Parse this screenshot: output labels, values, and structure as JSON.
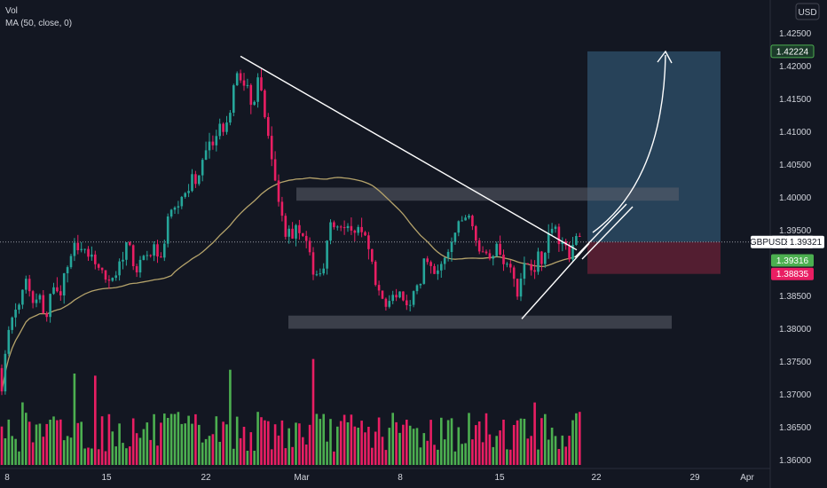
{
  "legend": {
    "vol_label": "Vol",
    "ma_label": "MA (50, close, 0)"
  },
  "currency": "USD",
  "chart_data": {
    "type": "candlestick",
    "symbol": "GBPUSD",
    "y_ticks": [
      "1.42500",
      "1.42000",
      "1.41500",
      "1.41000",
      "1.40500",
      "1.40000",
      "1.39500",
      "1.39000",
      "1.38500",
      "1.38000",
      "1.37500",
      "1.37000",
      "1.36500",
      "1.36000"
    ],
    "y_values": [
      1.425,
      1.42,
      1.415,
      1.41,
      1.405,
      1.4,
      1.395,
      1.39,
      1.385,
      1.38,
      1.375,
      1.37,
      1.365,
      1.36
    ],
    "ylim": [
      1.359,
      1.4285
    ],
    "x_ticks": [
      "8",
      "15",
      "22",
      "Mar",
      "8",
      "15",
      "22",
      "29",
      "Apr"
    ],
    "price_tags": {
      "target": "1.42224",
      "symbol_price": "1.39321",
      "ma_value": "1.39316",
      "stop": "1.38835"
    },
    "annotations": {
      "resistance_zone": [
        1.3995,
        1.4015
      ],
      "support_zone": [
        1.38,
        1.382
      ],
      "long_position_target": 1.42224,
      "long_position_entry": 1.39321,
      "long_position_stop": 1.38835,
      "descending_trendline": [
        1.4215,
        1.392
      ],
      "ascending_trendline": [
        1.3815,
        1.393
      ]
    },
    "colors": {
      "up": "#26a69a",
      "up_volume": "#4caf50",
      "down": "#e91e63",
      "ma": "#b5a36b",
      "zone": "#5d606b",
      "target_box": "#2c4a63",
      "stop_box": "#5b1f33",
      "price_line": "#9598a1",
      "target_tag": "#4caf50",
      "stop_tag": "#e91e63"
    }
  }
}
